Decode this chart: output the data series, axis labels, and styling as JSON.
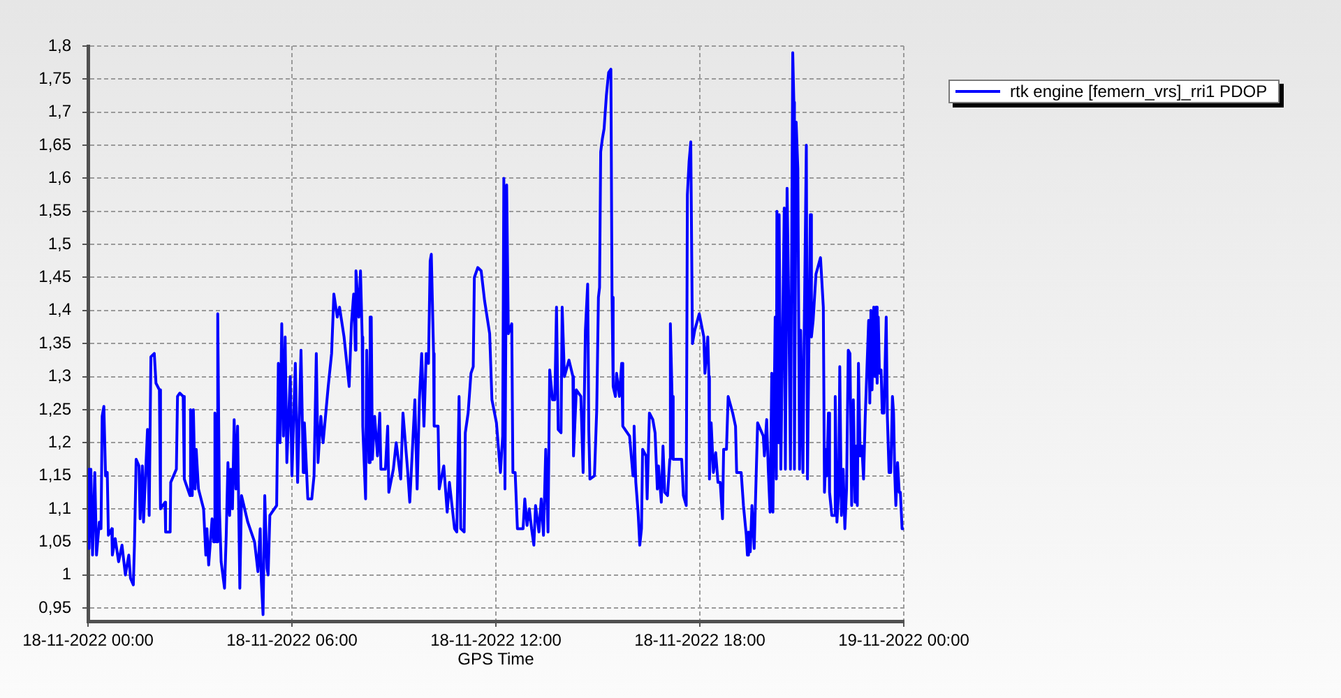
{
  "chart_data": {
    "type": "line",
    "xlabel": "GPS Time",
    "xlim": [
      "2022-11-18T00:00",
      "2022-11-19T00:00"
    ],
    "xticks": [
      {
        "value": "2022-11-18T00:00",
        "label": "18-11-2022 00:00"
      },
      {
        "value": "2022-11-18T06:00",
        "label": "18-11-2022 06:00"
      },
      {
        "value": "2022-11-18T12:00",
        "label": "18-11-2022 12:00"
      },
      {
        "value": "2022-11-18T18:00",
        "label": "18-11-2022 18:00"
      },
      {
        "value": "2022-11-19T00:00",
        "label": "19-11-2022 00:00"
      }
    ],
    "ylim": [
      0.93,
      1.8
    ],
    "yticks": [
      {
        "value": 0.95,
        "label": "0,95"
      },
      1,
      {
        "value": 1.05,
        "label": "1,05"
      },
      {
        "value": 1.1,
        "label": "1,1"
      },
      {
        "value": 1.15,
        "label": "1,15"
      },
      {
        "value": 1.2,
        "label": "1,2"
      },
      {
        "value": 1.25,
        "label": "1,25"
      },
      {
        "value": 1.3,
        "label": "1,3"
      },
      {
        "value": 1.35,
        "label": "1,35"
      },
      {
        "value": 1.4,
        "label": "1,4"
      },
      {
        "value": 1.45,
        "label": "1,45"
      },
      {
        "value": 1.5,
        "label": "1,5"
      },
      {
        "value": 1.55,
        "label": "1,55"
      },
      {
        "value": 1.6,
        "label": "1,6"
      },
      {
        "value": 1.65,
        "label": "1,65"
      },
      {
        "value": 1.7,
        "label": "1,7"
      },
      {
        "value": 1.75,
        "label": "1,75"
      },
      {
        "value": 1.8,
        "label": "1,8"
      }
    ],
    "grid": true,
    "legend": "top right",
    "marker": "none",
    "line_style": "solid",
    "x": [
      "2022-11-18T00:00",
      "2022-11-18T00:02",
      "2022-11-18T00:05",
      "2022-11-18T00:08",
      "2022-11-18T00:12",
      "2022-11-18T00:15",
      "2022-11-18T00:20",
      "2022-11-18T00:23",
      "2022-11-18T00:25",
      "2022-11-18T00:28",
      "2022-11-18T00:31",
      "2022-11-18T00:34",
      "2022-11-18T00:36",
      "2022-11-18T00:42",
      "2022-11-18T00:43",
      "2022-11-18T00:48",
      "2022-11-18T00:54",
      "2022-11-18T01:00",
      "2022-11-18T01:06",
      "2022-11-18T01:12",
      "2022-11-18T01:15",
      "2022-11-18T01:20",
      "2022-11-18T01:22",
      "2022-11-18T01:25",
      "2022-11-18T01:30",
      "2022-11-18T01:32",
      "2022-11-18T01:36",
      "2022-11-18T01:38",
      "2022-11-18T01:45",
      "2022-11-18T01:48",
      "2022-11-18T01:51",
      "2022-11-18T01:57",
      "2022-11-18T02:00",
      "2022-11-18T02:06",
      "2022-11-18T02:08",
      "2022-11-18T02:16",
      "2022-11-18T02:17",
      "2022-11-18T02:25",
      "2022-11-18T02:26",
      "2022-11-18T02:36",
      "2022-11-18T02:38",
      "2022-11-18T02:42",
      "2022-11-18T02:48",
      "2022-11-18T02:50",
      "2022-11-18T03:00",
      "2022-11-18T03:01",
      "2022-11-18T03:04",
      "2022-11-18T03:06",
      "2022-11-18T03:09",
      "2022-11-18T03:11",
      "2022-11-18T03:15",
      "2022-11-18T03:24",
      "2022-11-18T03:28",
      "2022-11-18T03:30",
      "2022-11-18T03:33",
      "2022-11-18T03:39",
      "2022-11-18T03:42",
      "2022-11-18T03:44",
      "2022-11-18T03:47",
      "2022-11-18T03:49",
      "2022-11-18T03:52",
      "2022-11-18T03:55",
      "2022-11-18T04:01",
      "2022-11-18T04:04",
      "2022-11-18T04:07",
      "2022-11-18T04:10",
      "2022-11-18T04:12",
      "2022-11-18T04:15",
      "2022-11-18T04:18",
      "2022-11-18T04:21",
      "2022-11-18T04:24",
      "2022-11-18T04:28",
      "2022-11-18T04:31",
      "2022-11-18T04:42",
      "2022-11-18T04:54",
      "2022-11-18T05:00",
      "2022-11-18T05:04",
      "2022-11-18T05:06",
      "2022-11-18T05:09",
      "2022-11-18T05:12",
      "2022-11-18T05:16",
      "2022-11-18T05:18",
      "2022-11-18T05:21",
      "2022-11-18T05:33",
      "2022-11-18T05:36",
      "2022-11-18T05:39",
      "2022-11-18T05:42",
      "2022-11-18T05:45",
      "2022-11-18T05:48",
      "2022-11-18T05:51",
      "2022-11-18T05:57",
      "2022-11-18T06:00",
      "2022-11-18T06:06",
      "2022-11-18T06:10",
      "2022-11-18T06:16",
      "2022-11-18T06:20",
      "2022-11-18T06:22",
      "2022-11-18T06:28",
      "2022-11-18T06:35",
      "2022-11-18T06:39",
      "2022-11-18T06:43",
      "2022-11-18T06:46",
      "2022-11-18T06:51",
      "2022-11-18T06:55",
      "2022-11-18T07:04",
      "2022-11-18T07:10",
      "2022-11-18T07:14",
      "2022-11-18T07:20",
      "2022-11-18T07:24",
      "2022-11-18T07:32",
      "2022-11-18T07:41",
      "2022-11-18T07:45",
      "2022-11-18T07:49",
      "2022-11-18T07:52",
      "2022-11-18T07:53",
      "2022-11-18T07:58",
      "2022-11-18T08:01",
      "2022-11-18T08:04",
      "2022-11-18T08:05",
      "2022-11-18T08:10",
      "2022-11-18T08:12",
      "2022-11-18T08:16",
      "2022-11-18T08:18",
      "2022-11-18T08:20",
      "2022-11-18T08:22",
      "2022-11-18T08:26",
      "2022-11-18T08:31",
      "2022-11-18T08:35",
      "2022-11-18T08:37",
      "2022-11-18T08:45",
      "2022-11-18T08:49",
      "2022-11-18T08:51",
      "2022-11-18T08:59",
      "2022-11-18T09:04",
      "2022-11-18T09:12",
      "2022-11-18T09:16",
      "2022-11-18T09:24",
      "2022-11-18T09:28",
      "2022-11-18T09:37",
      "2022-11-18T09:41",
      "2022-11-18T09:45",
      "2022-11-18T09:49",
      "2022-11-18T09:53",
      "2022-11-18T09:57",
      "2022-11-18T10:01",
      "2022-11-18T10:04",
      "2022-11-18T10:06",
      "2022-11-18T10:10",
      "2022-11-18T10:11",
      "2022-11-18T10:18",
      "2022-11-18T10:20",
      "2022-11-18T10:28",
      "2022-11-18T10:34",
      "2022-11-18T10:38",
      "2022-11-18T10:47",
      "2022-11-18T10:51",
      "2022-11-18T10:55",
      "2022-11-18T10:58",
      "2022-11-18T11:04",
      "2022-11-18T11:06",
      "2022-11-18T11:11",
      "2022-11-18T11:16",
      "2022-11-18T11:20",
      "2022-11-18T11:22",
      "2022-11-18T11:28",
      "2022-11-18T11:34",
      "2022-11-18T11:40",
      "2022-11-18T11:49",
      "2022-11-18T11:53",
      "2022-11-18T12:01",
      "2022-11-18T12:08",
      "2022-11-18T12:12",
      "2022-11-18T12:14",
      "2022-11-18T12:16",
      "2022-11-18T12:19",
      "2022-11-18T12:22",
      "2022-11-18T12:28",
      "2022-11-18T12:30",
      "2022-11-18T12:34",
      "2022-11-18T12:38",
      "2022-11-18T12:48",
      "2022-11-18T12:51",
      "2022-11-18T12:55",
      "2022-11-18T12:59",
      "2022-11-18T13:03",
      "2022-11-18T13:07",
      "2022-11-18T13:10",
      "2022-11-18T13:16",
      "2022-11-18T13:20",
      "2022-11-18T13:24",
      "2022-11-18T13:28",
      "2022-11-18T13:32",
      "2022-11-18T13:35",
      "2022-11-18T13:40",
      "2022-11-18T13:44",
      "2022-11-18T13:47",
      "2022-11-18T13:50",
      "2022-11-18T13:55",
      "2022-11-18T13:57",
      "2022-11-18T14:01",
      "2022-11-18T14:09",
      "2022-11-18T14:16",
      "2022-11-18T14:17",
      "2022-11-18T14:22",
      "2022-11-18T14:30",
      "2022-11-18T14:34",
      "2022-11-18T14:38",
      "2022-11-18T14:42",
      "2022-11-18T14:44",
      "2022-11-18T14:46",
      "2022-11-18T14:54",
      "2022-11-18T14:58",
      "2022-11-18T15:01",
      "2022-11-18T15:03",
      "2022-11-18T15:05",
      "2022-11-18T15:08",
      "2022-11-18T15:11",
      "2022-11-18T15:15",
      "2022-11-18T15:19",
      "2022-11-18T15:23",
      "2022-11-18T15:25",
      "2022-11-18T15:27",
      "2022-11-18T15:31",
      "2022-11-18T15:33",
      "2022-11-18T15:38",
      "2022-11-18T15:42",
      "2022-11-18T15:44",
      "2022-11-18T15:56",
      "2022-11-18T16:02",
      "2022-11-18T16:04",
      "2022-11-18T16:07",
      "2022-11-18T16:11",
      "2022-11-18T16:14",
      "2022-11-18T16:17",
      "2022-11-18T16:19",
      "2022-11-18T16:25",
      "2022-11-18T16:27",
      "2022-11-18T16:31",
      "2022-11-18T16:37",
      "2022-11-18T16:41",
      "2022-11-18T16:45",
      "2022-11-18T16:47",
      "2022-11-18T16:52",
      "2022-11-18T16:55",
      "2022-11-18T16:58",
      "2022-11-18T17:03",
      "2022-11-18T17:07",
      "2022-11-18T17:08",
      "2022-11-18T17:11",
      "2022-11-18T17:13",
      "2022-11-18T17:28",
      "2022-11-18T17:31",
      "2022-11-18T17:36",
      "2022-11-18T17:38",
      "2022-11-18T17:41",
      "2022-11-18T17:44",
      "2022-11-18T17:47",
      "2022-11-18T17:51",
      "2022-11-18T17:59",
      "2022-11-18T18:07",
      "2022-11-18T18:09",
      "2022-11-18T18:14",
      "2022-11-18T18:16",
      "2022-11-18T18:17",
      "2022-11-18T18:20",
      "2022-11-18T18:24",
      "2022-11-18T18:28",
      "2022-11-18T18:32",
      "2022-11-18T18:36",
      "2022-11-18T18:40",
      "2022-11-18T18:42",
      "2022-11-18T18:47",
      "2022-11-18T18:50",
      "2022-11-18T18:58",
      "2022-11-18T19:03",
      "2022-11-18T19:05",
      "2022-11-18T19:13",
      "2022-11-18T19:17",
      "2022-11-18T19:22",
      "2022-11-18T19:24",
      "2022-11-18T19:26",
      "2022-11-18T19:29",
      "2022-11-18T19:32",
      "2022-11-18T19:36",
      "2022-11-18T19:38",
      "2022-11-18T19:42",
      "2022-11-18T19:52",
      "2022-11-18T19:54",
      "2022-11-18T19:58",
      "2022-11-18T20:01",
      "2022-11-18T20:04",
      "2022-11-18T20:07",
      "2022-11-18T20:09",
      "2022-11-18T20:13",
      "2022-11-18T20:15",
      "2022-11-18T20:16",
      "2022-11-18T20:19",
      "2022-11-18T20:20",
      "2022-11-18T20:23",
      "2022-11-18T20:29",
      "2022-11-18T20:31",
      "2022-11-18T20:34",
      "2022-11-18T20:37",
      "2022-11-18T20:40",
      "2022-11-18T20:44",
      "2022-11-18T20:46",
      "2022-11-18T20:47",
      "2022-11-18T20:50",
      "2022-11-18T20:53",
      "2022-11-18T20:56",
      "2022-11-18T20:58",
      "2022-11-18T21:02",
      "2022-11-18T21:04",
      "2022-11-18T21:08",
      "2022-11-18T21:10",
      "2022-11-18T21:15",
      "2022-11-18T21:17",
      "2022-11-18T21:20",
      "2022-11-18T21:25",
      "2022-11-18T21:33",
      "2022-11-18T21:38",
      "2022-11-18T21:40",
      "2022-11-18T21:43",
      "2022-11-18T21:44",
      "2022-11-18T21:47",
      "2022-11-18T21:49",
      "2022-11-18T21:53",
      "2022-11-18T21:57",
      "2022-11-18T21:59",
      "2022-11-18T22:02",
      "2022-11-18T22:05",
      "2022-11-18T22:07",
      "2022-11-18T22:10",
      "2022-11-18T22:13",
      "2022-11-18T22:16",
      "2022-11-18T22:19",
      "2022-11-18T22:22",
      "2022-11-18T22:25",
      "2022-11-18T22:28",
      "2022-11-18T22:31",
      "2022-11-18T22:34",
      "2022-11-18T22:36",
      "2022-11-18T22:38",
      "2022-11-18T22:40",
      "2022-11-18T22:43",
      "2022-11-18T22:46",
      "2022-11-18T22:49",
      "2022-11-18T22:52",
      "2022-11-18T22:58",
      "2022-11-18T23:00",
      "2022-11-18T23:02",
      "2022-11-18T23:04",
      "2022-11-18T23:07",
      "2022-11-18T23:09",
      "2022-11-18T23:11",
      "2022-11-18T23:13",
      "2022-11-18T23:15",
      "2022-11-18T23:17",
      "2022-11-18T23:20",
      "2022-11-18T23:22",
      "2022-11-18T23:25",
      "2022-11-18T23:29",
      "2022-11-18T23:31",
      "2022-11-18T23:34",
      "2022-11-18T23:37",
      "2022-11-18T23:40",
      "2022-11-18T23:42",
      "2022-11-18T23:44",
      "2022-11-18T23:46",
      "2022-11-18T23:49",
      "2022-11-18T23:52",
      "2022-11-18T23:54",
      "2022-11-18T23:57",
      "2022-11-19T00:00"
    ],
    "series": [
      {
        "name": "rtk engine [femern_vrs]_rri1 PDOP",
        "color": "#0000ff",
        "values": [
          1.16,
          1.04,
          1.16,
          1.03,
          1.155,
          1.03,
          1.08,
          1.07,
          1.24,
          1.255,
          1.15,
          1.155,
          1.06,
          1.07,
          1.03,
          1.055,
          1.02,
          1.045,
          1.0,
          1.03,
          0.995,
          0.985,
          1.045,
          1.175,
          1.165,
          1.085,
          1.165,
          1.08,
          1.22,
          1.09,
          1.33,
          1.335,
          1.29,
          1.28,
          1.1,
          1.11,
          1.065,
          1.065,
          1.14,
          1.16,
          1.27,
          1.275,
          1.27,
          1.145,
          1.12,
          1.25,
          1.12,
          1.25,
          1.13,
          1.19,
          1.13,
          1.1,
          1.03,
          1.07,
          1.015,
          1.085,
          1.05,
          1.245,
          1.05,
          1.395,
          1.1,
          1.02,
          0.98,
          1.06,
          1.17,
          1.09,
          1.16,
          1.1,
          1.235,
          1.13,
          1.225,
          0.98,
          1.12,
          1.08,
          1.05,
          1.005,
          1.07,
          0.99,
          0.94,
          1.12,
          1.01,
          1.0,
          1.09,
          1.105,
          1.32,
          1.2,
          1.38,
          1.21,
          1.36,
          1.17,
          1.3,
          1.15,
          1.32,
          1.14,
          1.34,
          1.155,
          1.23,
          1.115,
          1.115,
          1.15,
          1.335,
          1.17,
          1.24,
          1.2,
          1.285,
          1.335,
          1.425,
          1.39,
          1.405,
          1.36,
          1.285,
          1.38,
          1.425,
          1.34,
          1.46,
          1.39,
          1.46,
          1.36,
          1.225,
          1.115,
          1.34,
          1.17,
          1.39,
          1.39,
          1.175,
          1.24,
          1.18,
          1.245,
          1.16,
          1.16,
          1.225,
          1.125,
          1.16,
          1.2,
          1.145,
          1.245,
          1.16,
          1.11,
          1.265,
          1.13,
          1.265,
          1.335,
          1.225,
          1.335,
          1.32,
          1.475,
          1.485,
          1.335,
          1.225,
          1.225,
          1.13,
          1.165,
          1.095,
          1.14,
          1.07,
          1.065,
          1.27,
          1.07,
          1.065,
          1.215,
          1.245,
          1.305,
          1.315,
          1.45,
          1.465,
          1.46,
          1.415,
          1.365,
          1.265,
          1.23,
          1.155,
          1.21,
          1.6,
          1.13,
          1.59,
          1.365,
          1.38,
          1.155,
          1.155,
          1.07,
          1.07,
          1.115,
          1.075,
          1.1,
          1.07,
          1.045,
          1.105,
          1.065,
          1.115,
          1.06,
          1.19,
          1.065,
          1.31,
          1.265,
          1.265,
          1.405,
          1.22,
          1.215,
          1.405,
          1.3,
          1.325,
          1.3,
          1.18,
          1.28,
          1.27,
          1.155,
          1.37,
          1.44,
          1.22,
          1.145,
          1.15,
          1.25,
          1.42,
          1.435,
          1.64,
          1.66,
          1.675,
          1.725,
          1.76,
          1.765,
          1.42,
          1.285,
          1.27,
          1.305,
          1.27,
          1.32,
          1.225,
          1.21,
          1.15,
          1.225,
          1.14,
          1.095,
          1.045,
          1.07,
          1.19,
          1.18,
          1.115,
          1.245,
          1.235,
          1.215,
          1.13,
          1.165,
          1.11,
          1.195,
          1.125,
          1.12,
          1.175,
          1.38,
          1.27,
          1.175,
          1.175,
          1.12,
          1.105,
          1.575,
          1.625,
          1.655,
          1.35,
          1.37,
          1.395,
          1.36,
          1.305,
          1.36,
          1.3,
          1.145,
          1.23,
          1.155,
          1.185,
          1.14,
          1.14,
          1.085,
          1.19,
          1.19,
          1.27,
          1.245,
          1.225,
          1.155,
          1.155,
          1.105,
          1.06,
          1.03,
          1.065,
          1.035,
          1.105,
          1.04,
          1.105,
          1.23,
          1.21,
          1.18,
          1.235,
          1.155,
          1.095,
          1.305,
          1.095,
          1.39,
          1.145,
          1.55,
          1.2,
          1.545,
          1.16,
          1.555,
          1.16,
          1.585,
          1.405,
          1.16,
          1.79,
          1.715,
          1.16,
          1.685,
          1.615,
          1.16,
          1.37,
          1.155,
          1.35,
          1.65,
          1.145,
          1.545,
          1.36,
          1.385,
          1.455,
          1.48,
          1.405,
          1.125,
          1.19,
          1.15,
          1.245,
          1.125,
          1.09,
          1.09,
          1.27,
          1.08,
          1.125,
          1.315,
          1.09,
          1.16,
          1.07,
          1.13,
          1.34,
          1.335,
          1.105,
          1.265,
          1.11,
          1.195,
          1.105,
          1.32,
          1.18,
          1.195,
          1.145,
          1.24,
          1.385,
          1.26,
          1.4,
          1.28,
          1.405,
          1.3,
          1.405,
          1.29,
          1.39,
          1.305,
          1.31,
          1.245,
          1.245,
          1.39,
          1.24,
          1.155,
          1.155,
          1.27,
          1.245,
          1.155,
          1.105,
          1.17,
          1.125,
          1.125,
          1.07,
          1.07
        ]
      }
    ]
  }
}
